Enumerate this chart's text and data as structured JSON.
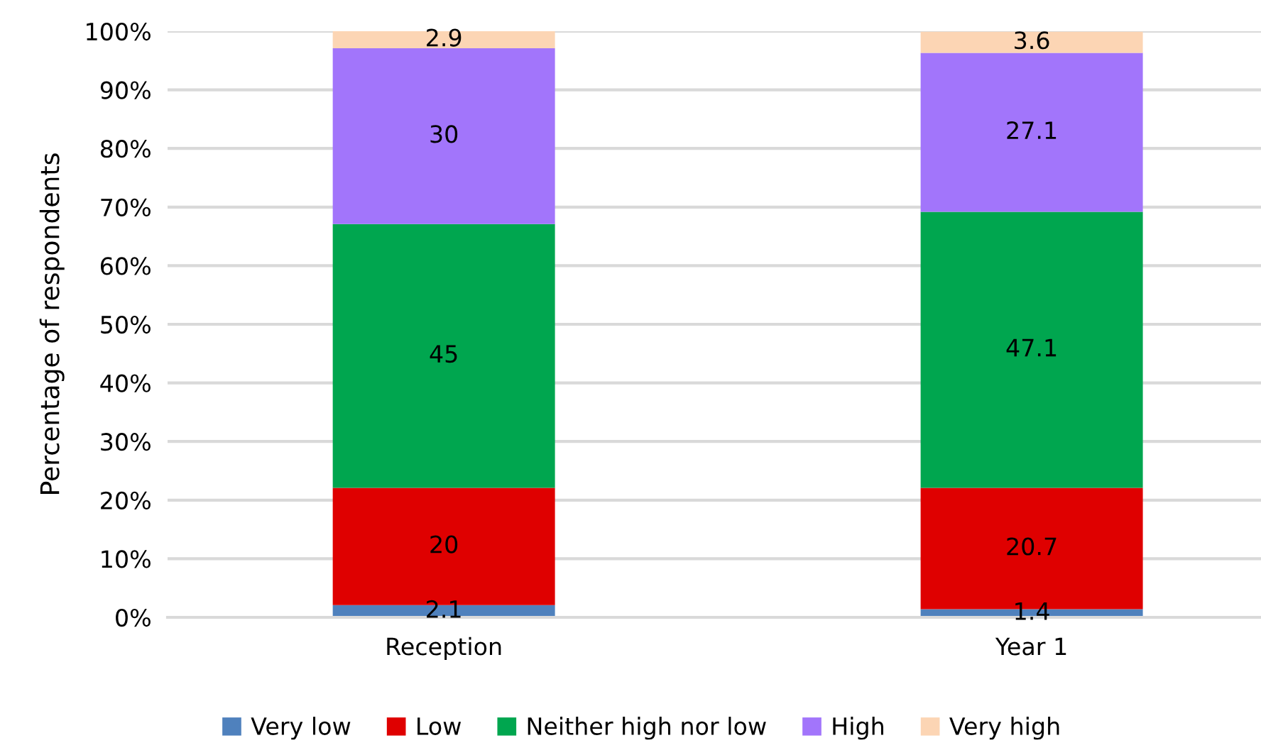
{
  "chart_data": {
    "type": "bar",
    "stacked": true,
    "ylabel": "Percentage of respondents",
    "categories": [
      "Reception",
      "Year 1"
    ],
    "series": [
      {
        "name": "Very low",
        "color": "#4f81bd",
        "values": [
          2.1,
          1.4
        ]
      },
      {
        "name": "Low",
        "color": "#df0000",
        "values": [
          20,
          20.7
        ]
      },
      {
        "name": "Neither high nor low",
        "color": "#00a64f",
        "values": [
          45,
          47.1
        ]
      },
      {
        "name": "High",
        "color": "#a275fb",
        "values": [
          30,
          27.1
        ]
      },
      {
        "name": "Very high",
        "color": "#fcd5b4",
        "values": [
          2.9,
          3.6
        ]
      }
    ],
    "ylim": [
      0,
      100
    ],
    "yticks": [
      {
        "value": 0,
        "label": "0%"
      },
      {
        "value": 10,
        "label": "10%"
      },
      {
        "value": 20,
        "label": "20%"
      },
      {
        "value": 30,
        "label": "30%"
      },
      {
        "value": 40,
        "label": "40%"
      },
      {
        "value": 50,
        "label": "50%"
      },
      {
        "value": 60,
        "label": "60%"
      },
      {
        "value": 70,
        "label": "70%"
      },
      {
        "value": 80,
        "label": "80%"
      },
      {
        "value": 90,
        "label": "90%"
      },
      {
        "value": 100,
        "label": "100%"
      }
    ],
    "grid": "y",
    "legend": "bottom",
    "data_labels": true
  }
}
